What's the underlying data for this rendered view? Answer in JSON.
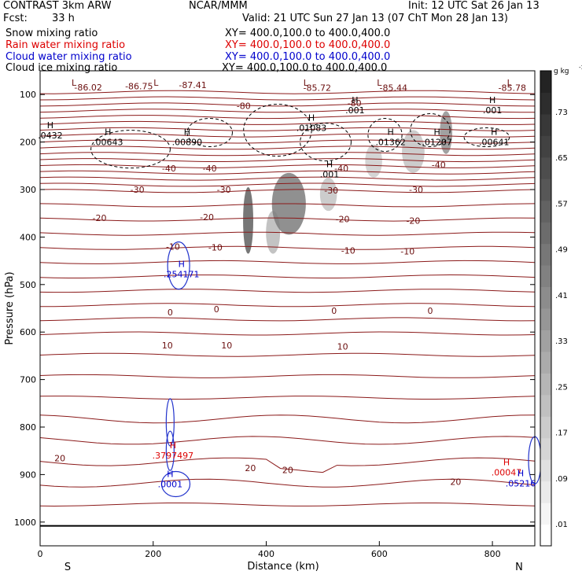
{
  "header": {
    "model": "CONTRAST  3km ARW",
    "org": "NCAR/MMM",
    "init": "Init: 12 UTC Sat 26 Jan 13",
    "fcst_label": "Fcst:",
    "fcst_value": "33 h",
    "valid": "Valid: 21 UTC Sun 27 Jan 13 (07 ChT Mon 28 Jan 13)"
  },
  "fields": [
    {
      "name": "Snow mixing ratio",
      "xy": "XY=  400.0,100.0 to 400.0,400.0",
      "color": "#000000"
    },
    {
      "name": "Rain water mixing ratio",
      "xy": "XY=  400.0,100.0 to 400.0,400.0",
      "color": "#dd0000"
    },
    {
      "name": "Cloud water mixing ratio",
      "xy": "XY=  400.0,100.0 to 400.0,400.0",
      "color": "#0000cc"
    },
    {
      "name": "Cloud ice mixing ratio",
      "xy": "XY=  400.0,100.0 to 400.0,400.0",
      "color": "#000000"
    }
  ],
  "chart_data": {
    "type": "heatmap",
    "xlabel": "Distance (km)",
    "ylabel": "Pressure (hPa)",
    "x_range": [
      0,
      875
    ],
    "y_range": [
      1050,
      50
    ],
    "x_ticks": [
      0,
      200,
      400,
      600,
      800
    ],
    "y_ticks": [
      100,
      200,
      300,
      400,
      500,
      600,
      700,
      800,
      900,
      1000
    ],
    "x_end_labels": {
      "left": "S",
      "right": "N"
    },
    "colorbar": {
      "unit": "g kg",
      "unit_exp": "-1",
      "labels": [
        ".01",
        ".09",
        ".17",
        ".25",
        ".33",
        ".41",
        ".49",
        ".57",
        ".65",
        ".73"
      ]
    },
    "temperature_isotherms": [
      {
        "label": "-80",
        "p": 123,
        "label_x": 360
      },
      {
        "label": "-40",
        "p": 252,
        "label_x": 300
      },
      {
        "label": "-30",
        "p": 300,
        "label_x": 250
      },
      {
        "label": "-20",
        "p": 360,
        "label_x": 300
      },
      {
        "label": "-10",
        "p": 430,
        "label_x": 350
      },
      {
        "label": "0",
        "p": 555,
        "label_x": 320
      },
      {
        "label": "10",
        "p": 630,
        "label_x": 330
      },
      {
        "label": "20",
        "p": 870,
        "label_x": 370
      }
    ],
    "contour_labels": [
      {
        "text": "-40",
        "x": 228,
        "p": 255
      },
      {
        "text": "-40",
        "x": 300,
        "p": 255
      },
      {
        "text": "-40",
        "x": 533,
        "p": 255
      },
      {
        "text": "-40",
        "x": 705,
        "p": 248
      },
      {
        "text": "-30",
        "x": 172,
        "p": 300
      },
      {
        "text": "-30",
        "x": 325,
        "p": 300
      },
      {
        "text": "-30",
        "x": 515,
        "p": 302
      },
      {
        "text": "-30",
        "x": 665,
        "p": 300
      },
      {
        "text": "-20",
        "x": 105,
        "p": 360
      },
      {
        "text": "-20",
        "x": 295,
        "p": 358
      },
      {
        "text": "-20",
        "x": 535,
        "p": 362
      },
      {
        "text": "-20",
        "x": 660,
        "p": 365
      },
      {
        "text": "-10",
        "x": 235,
        "p": 420
      },
      {
        "text": "-10",
        "x": 310,
        "p": 422
      },
      {
        "text": "-10",
        "x": 545,
        "p": 428
      },
      {
        "text": "-10",
        "x": 650,
        "p": 430
      },
      {
        "text": "0",
        "x": 230,
        "p": 558
      },
      {
        "text": "0",
        "x": 312,
        "p": 552
      },
      {
        "text": "0",
        "x": 520,
        "p": 555
      },
      {
        "text": "0",
        "x": 690,
        "p": 555
      },
      {
        "text": "10",
        "x": 225,
        "p": 628
      },
      {
        "text": "10",
        "x": 330,
        "p": 628
      },
      {
        "text": "10",
        "x": 535,
        "p": 630
      },
      {
        "text": "20",
        "x": 35,
        "p": 865
      },
      {
        "text": "20",
        "x": 372,
        "p": 886
      },
      {
        "text": "20",
        "x": 438,
        "p": 890
      },
      {
        "text": "20",
        "x": 735,
        "p": 915
      },
      {
        "text": "-80",
        "x": 360,
        "p": 124
      },
      {
        "text": "-80",
        "x": 556,
        "p": 118
      }
    ],
    "low_labels": [
      {
        "x": 60,
        "p": 75
      },
      {
        "x": 205,
        "p": 75
      },
      {
        "x": 470,
        "p": 75
      },
      {
        "x": 600,
        "p": 75
      },
      {
        "x": 830,
        "p": 75
      }
    ],
    "top_values": [
      {
        "text": "-86.02",
        "x": 85,
        "p": 85
      },
      {
        "text": "-86.75",
        "x": 175,
        "p": 82
      },
      {
        "text": "-87.41",
        "x": 270,
        "p": 80
      },
      {
        "text": "-85.72",
        "x": 490,
        "p": 86
      },
      {
        "text": "-85.44",
        "x": 625,
        "p": 86
      },
      {
        "text": "-85.78",
        "x": 835,
        "p": 86
      }
    ],
    "high_points": [
      {
        "text": ".0432",
        "x": 18,
        "p": 186,
        "color": "#000000"
      },
      {
        "text": ".00643",
        "x": 120,
        "p": 200,
        "color": "#000000"
      },
      {
        "text": ".00890",
        "x": 260,
        "p": 200,
        "color": "#000000"
      },
      {
        "text": ".01083",
        "x": 480,
        "p": 170,
        "color": "#000000"
      },
      {
        "text": ".001",
        "x": 557,
        "p": 133,
        "color": "#000000"
      },
      {
        "text": ".001",
        "x": 800,
        "p": 133,
        "color": "#000000"
      },
      {
        "text": ".001",
        "x": 512,
        "p": 268,
        "color": "#000000"
      },
      {
        "text": ".01362",
        "x": 620,
        "p": 200,
        "color": "#000000"
      },
      {
        "text": ".01207",
        "x": 702,
        "p": 200,
        "color": "#000000"
      },
      {
        "text": ".00641",
        "x": 803,
        "p": 200,
        "color": "#000000"
      },
      {
        "text": ".254171",
        "x": 250,
        "p": 478,
        "color": "#0000cc"
      },
      {
        "text": ".3797497",
        "x": 235,
        "p": 860,
        "color": "#dd0000"
      },
      {
        "text": ".0001",
        "x": 230,
        "p": 920,
        "color": "#0000cc"
      },
      {
        "text": ".00047",
        "x": 825,
        "p": 895,
        "color": "#dd0000"
      },
      {
        "text": ".05216",
        "x": 850,
        "p": 918,
        "color": "#0000cc"
      }
    ],
    "shaded_cells": [
      {
        "x": 368,
        "p": 365,
        "w": 18,
        "h": 140,
        "v": 0.7
      },
      {
        "x": 412,
        "p": 390,
        "w": 25,
        "h": 90,
        "v": 0.25
      },
      {
        "x": 440,
        "p": 330,
        "w": 60,
        "h": 130,
        "v": 0.55
      },
      {
        "x": 510,
        "p": 310,
        "w": 30,
        "h": 70,
        "v": 0.2
      },
      {
        "x": 590,
        "p": 240,
        "w": 30,
        "h": 70,
        "v": 0.15
      },
      {
        "x": 660,
        "p": 220,
        "w": 40,
        "h": 90,
        "v": 0.2
      },
      {
        "x": 718,
        "p": 180,
        "w": 22,
        "h": 90,
        "v": 0.45
      }
    ],
    "surface_pressure": 1008
  }
}
